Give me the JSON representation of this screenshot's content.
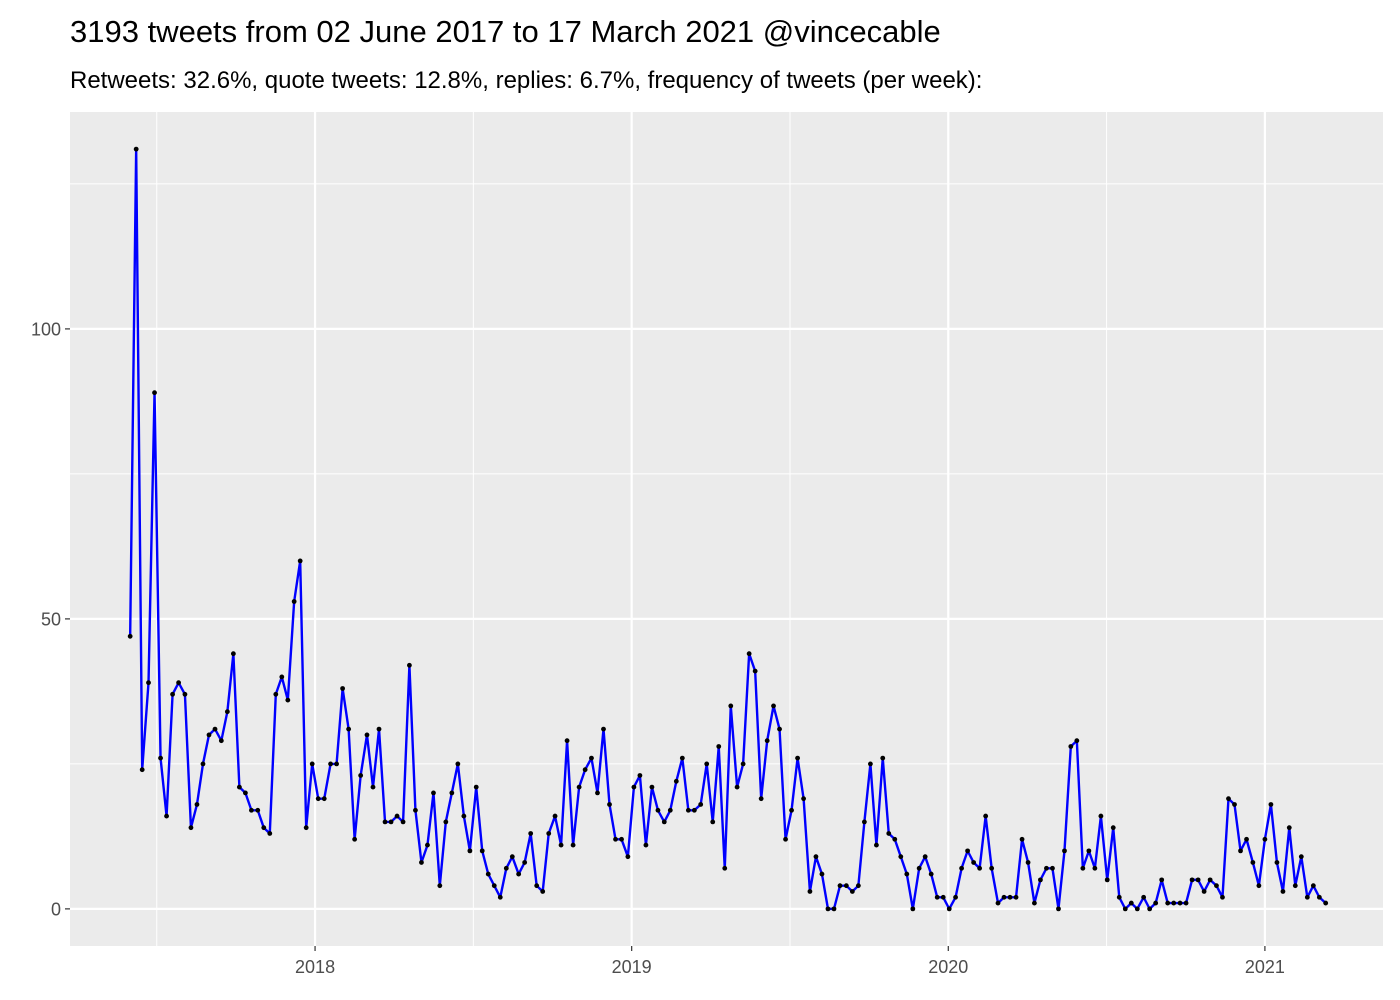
{
  "chart_data": {
    "type": "line",
    "title": "3193 tweets from 02 June 2017 to 17 March 2021 @vincecable",
    "subtitle": "Retweets: 32.6%, quote tweets: 12.8%, replies: 6.7%, frequency of tweets (per week):",
    "x": [
      2017.416,
      2017.435,
      2017.454,
      2017.474,
      2017.493,
      2017.512,
      2017.531,
      2017.55,
      2017.569,
      2017.589,
      2017.608,
      2017.627,
      2017.646,
      2017.665,
      2017.684,
      2017.704,
      2017.723,
      2017.742,
      2017.761,
      2017.78,
      2017.799,
      2017.819,
      2017.838,
      2017.857,
      2017.876,
      2017.895,
      2017.914,
      2017.934,
      2017.953,
      2017.972,
      2017.991,
      2018.01,
      2018.029,
      2018.049,
      2018.068,
      2018.087,
      2018.106,
      2018.125,
      2018.144,
      2018.164,
      2018.183,
      2018.202,
      2018.221,
      2018.24,
      2018.259,
      2018.278,
      2018.298,
      2018.317,
      2018.336,
      2018.355,
      2018.374,
      2018.394,
      2018.413,
      2018.432,
      2018.451,
      2018.47,
      2018.489,
      2018.509,
      2018.528,
      2018.547,
      2018.566,
      2018.585,
      2018.604,
      2018.623,
      2018.643,
      2018.662,
      2018.681,
      2018.7,
      2018.719,
      2018.738,
      2018.758,
      2018.777,
      2018.796,
      2018.815,
      2018.834,
      2018.853,
      2018.873,
      2018.892,
      2018.911,
      2018.93,
      2018.949,
      2018.968,
      2018.988,
      2019.007,
      2019.026,
      2019.045,
      2019.064,
      2019.083,
      2019.103,
      2019.122,
      2019.141,
      2019.16,
      2019.179,
      2019.198,
      2019.218,
      2019.237,
      2019.256,
      2019.275,
      2019.294,
      2019.313,
      2019.333,
      2019.352,
      2019.371,
      2019.39,
      2019.409,
      2019.428,
      2019.448,
      2019.467,
      2019.486,
      2019.505,
      2019.524,
      2019.543,
      2019.563,
      2019.582,
      2019.601,
      2019.62,
      2019.639,
      2019.658,
      2019.678,
      2019.697,
      2019.716,
      2019.735,
      2019.754,
      2019.773,
      2019.793,
      2019.812,
      2019.831,
      2019.85,
      2019.869,
      2019.888,
      2019.908,
      2019.927,
      2019.946,
      2019.965,
      2019.984,
      2020.003,
      2020.023,
      2020.042,
      2020.061,
      2020.08,
      2020.099,
      2020.118,
      2020.137,
      2020.157,
      2020.176,
      2020.195,
      2020.214,
      2020.233,
      2020.252,
      2020.272,
      2020.291,
      2020.31,
      2020.329,
      2020.348,
      2020.367,
      2020.387,
      2020.406,
      2020.425,
      2020.444,
      2020.463,
      2020.482,
      2020.502,
      2020.521,
      2020.54,
      2020.559,
      2020.578,
      2020.597,
      2020.617,
      2020.636,
      2020.655,
      2020.674,
      2020.693,
      2020.712,
      2020.732,
      2020.751,
      2020.77,
      2020.789,
      2020.808,
      2020.827,
      2020.847,
      2020.866,
      2020.885,
      2020.904,
      2020.923,
      2020.942,
      2020.962,
      2020.981,
      2021.0,
      2021.019,
      2021.038,
      2021.057,
      2021.077,
      2021.096,
      2021.115,
      2021.134,
      2021.153,
      2021.172,
      2021.192
    ],
    "series": [
      {
        "color": "#0000ff",
        "marker_color": "#000000",
        "values": [
          47,
          131,
          24,
          39,
          89,
          26,
          16,
          37,
          39,
          37,
          14,
          18,
          25,
          30,
          31,
          29,
          34,
          44,
          21,
          20,
          17,
          17,
          14,
          13,
          37,
          40,
          36,
          53,
          60,
          14,
          25,
          19,
          19,
          25,
          25,
          38,
          31,
          12,
          23,
          30,
          21,
          31,
          15,
          15,
          16,
          15,
          42,
          17,
          8,
          11,
          20,
          4,
          15,
          20,
          25,
          16,
          10,
          21,
          10,
          6,
          4,
          2,
          7,
          9,
          6,
          8,
          13,
          4,
          3,
          13,
          16,
          11,
          29,
          11,
          21,
          24,
          26,
          20,
          31,
          18,
          12,
          12,
          9,
          21,
          23,
          11,
          21,
          17,
          15,
          17,
          22,
          26,
          17,
          17,
          18,
          25,
          15,
          28,
          7,
          35,
          21,
          25,
          44,
          41,
          19,
          29,
          35,
          31,
          12,
          17,
          26,
          19,
          3,
          9,
          6,
          0,
          0,
          4,
          4,
          3,
          4,
          15,
          25,
          11,
          26,
          13,
          12,
          9,
          6,
          0,
          7,
          9,
          6,
          2,
          2,
          0,
          2,
          7,
          10,
          8,
          7,
          16,
          7,
          1,
          2,
          2,
          2,
          12,
          8,
          1,
          5,
          7,
          7,
          0,
          10,
          28,
          29,
          7,
          10,
          7,
          16,
          5,
          14,
          2,
          0,
          1,
          0,
          2,
          0,
          1,
          5,
          1,
          1,
          1,
          1,
          5,
          5,
          3,
          5,
          4,
          2,
          19,
          18,
          10,
          12,
          8,
          4,
          12,
          18,
          8,
          3,
          14,
          4,
          9,
          2,
          4,
          2,
          1
        ]
      }
    ],
    "xlim": [
      2017.226,
      2021.373
    ],
    "ylim": [
      -6.4,
      137.4
    ],
    "xticks": [
      2018,
      2019,
      2020,
      2021
    ],
    "yticks": [
      0,
      50,
      100
    ],
    "x_minor_grid": [
      2017.5,
      2018.5,
      2019.5,
      2020.5
    ],
    "y_minor_grid": [
      25,
      75,
      125
    ],
    "grid": true,
    "panel_color": "#ebebeb"
  }
}
